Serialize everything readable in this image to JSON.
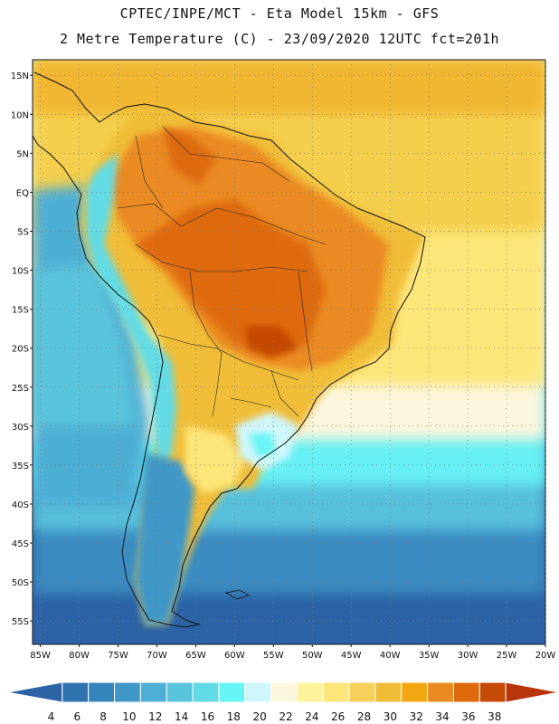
{
  "header": {
    "line1": "CPTEC/INPE/MCT -  Eta Model 15km - GFS",
    "line2": "2 Metre Temperature (C) - 23/09/2020 12UTC fct=201h"
  },
  "map": {
    "lat_labels": [
      "15N",
      "10N",
      "5N",
      "EQ",
      "5S",
      "10S",
      "15S",
      "20S",
      "25S",
      "30S",
      "35S",
      "40S",
      "45S",
      "50S",
      "55S"
    ],
    "lat_values": [
      15,
      10,
      5,
      0,
      -5,
      -10,
      -15,
      -20,
      -25,
      -30,
      -35,
      -40,
      -45,
      -50,
      -55
    ],
    "lon_labels": [
      "85W",
      "80W",
      "75W",
      "70W",
      "65W",
      "60W",
      "55W",
      "50W",
      "45W",
      "40W",
      "35W",
      "30W",
      "25W",
      "20W"
    ],
    "lon_values": [
      -85,
      -80,
      -75,
      -70,
      -65,
      -60,
      -55,
      -50,
      -45,
      -40,
      -35,
      -30,
      -25,
      -20
    ],
    "lat_range": [
      -58,
      17
    ],
    "lon_range": [
      -86,
      -20
    ]
  },
  "colorbar": {
    "labels": [
      "4",
      "6",
      "8",
      "10",
      "12",
      "14",
      "16",
      "18",
      "20",
      "22",
      "24",
      "26",
      "28",
      "30",
      "32",
      "34",
      "36",
      "38"
    ],
    "colors": [
      "#2b63a6",
      "#2f73b0",
      "#3585bd",
      "#3f98c8",
      "#4eaed4",
      "#5ac4dc",
      "#62dbe6",
      "#66f5f5",
      "#cff7fb",
      "#fbf6dd",
      "#fdf39a",
      "#fde67a",
      "#f6d05a",
      "#f0bd38",
      "#f3a713",
      "#ea8a20",
      "#de6a0c",
      "#c44a05",
      "#b8340a"
    ]
  }
}
